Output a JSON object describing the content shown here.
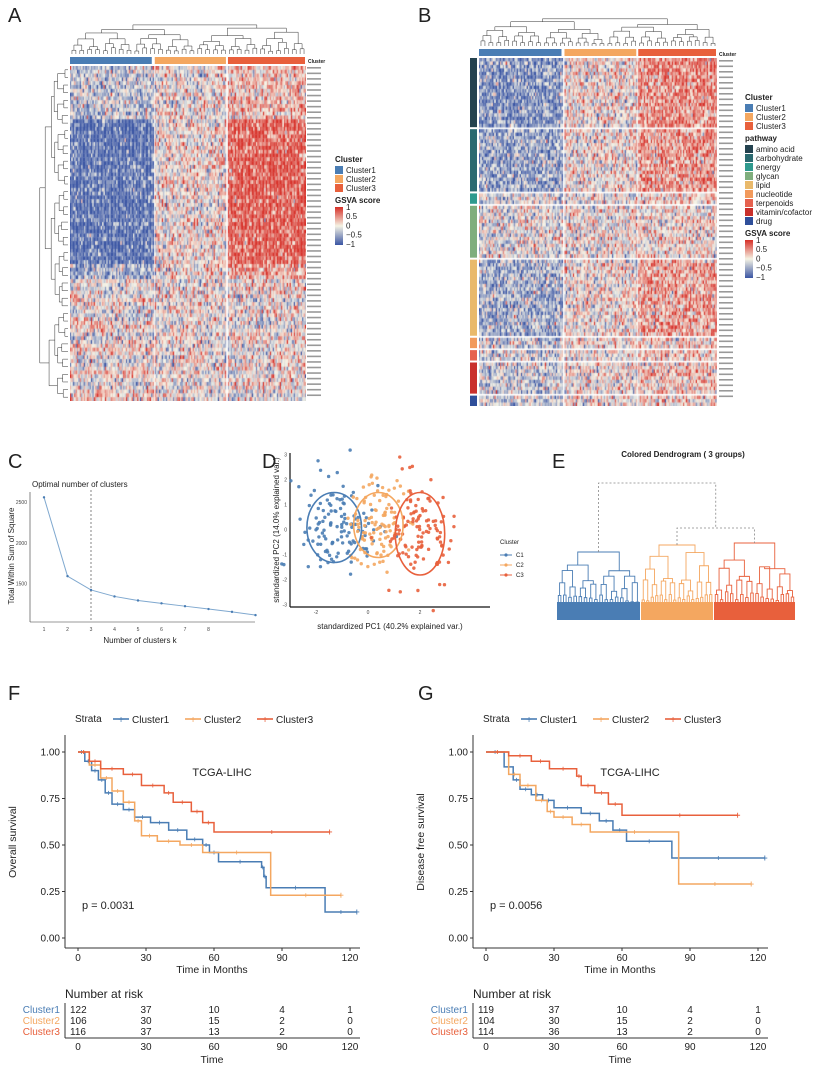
{
  "panels": {
    "A": "A",
    "B": "B",
    "C": "C",
    "D": "D",
    "E": "E",
    "F": "F",
    "G": "G"
  },
  "colors": {
    "cluster1": "#4a7db4",
    "cluster2": "#f4a760",
    "cluster3": "#e8603c",
    "heat_low": "#3a55a3",
    "heat_mid": "#f5f3e4",
    "heat_high": "#d62f27"
  },
  "chart_data": [
    {
      "panel": "A",
      "type": "heatmap",
      "column_annotation": {
        "title": "Cluster",
        "levels": [
          "Cluster1",
          "Cluster2",
          "Cluster3"
        ],
        "n": [
          122,
          106,
          116
        ]
      },
      "colorbar": {
        "title": "GSVA score",
        "ticks": [
          "1",
          "0.5",
          "0",
          "−0.5",
          "−1"
        ],
        "range": [
          -1,
          1
        ]
      },
      "annotation_label": "Cluster"
    },
    {
      "panel": "B",
      "type": "heatmap",
      "column_annotation": {
        "title": "Cluster",
        "levels": [
          "Cluster1",
          "Cluster2",
          "Cluster3"
        ]
      },
      "row_annotation": {
        "title": "pathway",
        "levels": [
          "amino acid",
          "carbohydrate",
          "energy",
          "glycan",
          "lipid",
          "nucleotide",
          "terpenoids",
          "vitamin/cofactor",
          "drug"
        ],
        "colors": [
          "#24424f",
          "#2b6a70",
          "#2f9a8e",
          "#7fae7d",
          "#e9b96b",
          "#f29a5c",
          "#e6624f",
          "#c9302c",
          "#2f4f9a"
        ]
      },
      "colorbar": {
        "title": "GSVA score",
        "ticks": [
          "1",
          "0.5",
          "0",
          "−0.5",
          "−1"
        ],
        "range": [
          -1,
          1
        ]
      },
      "annotation_label": "Cluster"
    },
    {
      "panel": "C",
      "type": "line",
      "title": "Optimal number of clusters",
      "xlabel": "Number of clusters k",
      "ylabel": "Total Within Sum of Square",
      "x": [
        1,
        2,
        3,
        4,
        5,
        6,
        7,
        8,
        9,
        10
      ],
      "values": [
        2560,
        1590,
        1420,
        1340,
        1290,
        1255,
        1220,
        1185,
        1150,
        1110
      ],
      "xticks": [
        "1",
        "2",
        "3",
        "4",
        "5",
        "6",
        "7",
        "8"
      ],
      "yticks": [
        1500,
        2000,
        2500
      ],
      "ylim": [
        1050,
        2650
      ],
      "vline": 3
    },
    {
      "panel": "D",
      "type": "scatter",
      "xlabel": "standardized PC1 (40.2% explained var.)",
      "ylabel": "standardized PC2 (14.0% explained var.)",
      "xlim": [
        -3,
        4.5
      ],
      "ylim": [
        -3,
        3
      ],
      "xticks": [
        "-2",
        "0",
        "2"
      ],
      "yticks": [
        "3",
        "2",
        "1",
        "0",
        "-1",
        "-2",
        "-3"
      ],
      "legend": {
        "title": "Cluster",
        "entries": [
          "C1",
          "C2",
          "C3"
        ],
        "placement": "right"
      },
      "groups": [
        {
          "name": "C1",
          "n": 122,
          "center": [
            -1.3,
            0.1
          ],
          "spread": [
            0.75,
            0.95
          ],
          "ellipse_radii": [
            1.05,
            1.4
          ]
        },
        {
          "name": "C2",
          "n": 106,
          "center": [
            0.4,
            0.2
          ],
          "spread": [
            0.6,
            0.95
          ],
          "ellipse_radii": [
            0.95,
            1.3
          ]
        },
        {
          "name": "C3",
          "n": 116,
          "center": [
            2.0,
            -0.15
          ],
          "spread": [
            0.65,
            1.0
          ],
          "ellipse_radii": [
            0.95,
            1.65
          ]
        }
      ]
    },
    {
      "panel": "E",
      "type": "dendrogram",
      "title": "Colored Dendrogram ( 3  groups)",
      "groups": [
        "Cluster1",
        "Cluster2",
        "Cluster3"
      ]
    },
    {
      "panel": "F",
      "type": "line",
      "subtype": "kaplan-meier",
      "legend_title": "Strata",
      "legend": [
        "Cluster1",
        "Cluster2",
        "Cluster3"
      ],
      "legend_placement": "top",
      "annotation": "TCGA-LIHC",
      "pvalue": "p = 0.0031",
      "xlabel": "Time in Months",
      "ylabel": "Overall survival",
      "xticks": [
        "0",
        "30",
        "60",
        "90",
        "120"
      ],
      "yticks": [
        "0.00",
        "0.25",
        "0.50",
        "0.75",
        "1.00"
      ],
      "xlim": [
        0,
        125
      ],
      "ylim": [
        0,
        1
      ],
      "series": [
        {
          "name": "Cluster1",
          "steps": [
            [
              0,
              1
            ],
            [
              3,
              0.95
            ],
            [
              6,
              0.9
            ],
            [
              9,
              0.85
            ],
            [
              12,
              0.78
            ],
            [
              15,
              0.72
            ],
            [
              20,
              0.69
            ],
            [
              25,
              0.65
            ],
            [
              32,
              0.62
            ],
            [
              40,
              0.58
            ],
            [
              48,
              0.53
            ],
            [
              55,
              0.5
            ],
            [
              58,
              0.46
            ],
            [
              62,
              0.41
            ],
            [
              81,
              0.38
            ],
            [
              82,
              0.33
            ],
            [
              83,
              0.27
            ],
            [
              109,
              0.14
            ],
            [
              123,
              0.14
            ]
          ]
        },
        {
          "name": "Cluster2",
          "steps": [
            [
              0,
              1
            ],
            [
              5,
              0.93
            ],
            [
              10,
              0.86
            ],
            [
              15,
              0.79
            ],
            [
              20,
              0.73
            ],
            [
              25,
              0.63
            ],
            [
              28,
              0.55
            ],
            [
              35,
              0.52
            ],
            [
              45,
              0.5
            ],
            [
              55,
              0.46
            ],
            [
              85,
              0.23
            ],
            [
              116,
              0.23
            ]
          ]
        },
        {
          "name": "Cluster3",
          "steps": [
            [
              0,
              1
            ],
            [
              5,
              0.95
            ],
            [
              10,
              0.91
            ],
            [
              20,
              0.88
            ],
            [
              28,
              0.82
            ],
            [
              38,
              0.78
            ],
            [
              42,
              0.73
            ],
            [
              50,
              0.68
            ],
            [
              55,
              0.62
            ],
            [
              60,
              0.57
            ],
            [
              111,
              0.57
            ]
          ]
        }
      ],
      "risk_table": {
        "title": "Number at risk",
        "xlabel": "Time",
        "times": [
          "0",
          "30",
          "60",
          "90",
          "120"
        ],
        "rows": [
          {
            "name": "Cluster1",
            "values": [
              "122",
              "37",
              "10",
              "4",
              "1"
            ]
          },
          {
            "name": "Cluster2",
            "values": [
              "106",
              "30",
              "15",
              "2",
              "0"
            ]
          },
          {
            "name": "Cluster3",
            "values": [
              "116",
              "37",
              "13",
              "2",
              "0"
            ]
          }
        ]
      }
    },
    {
      "panel": "G",
      "type": "line",
      "subtype": "kaplan-meier",
      "legend_title": "Strata",
      "legend": [
        "Cluster1",
        "Cluster2",
        "Cluster3"
      ],
      "legend_placement": "top",
      "annotation": "TCGA-LIHC",
      "pvalue": "p = 0.0056",
      "xlabel": "Time in Months",
      "ylabel": "Disease free survival",
      "xticks": [
        "0",
        "30",
        "60",
        "90",
        "120"
      ],
      "yticks": [
        "0.00",
        "0.25",
        "0.50",
        "0.75",
        "1.00"
      ],
      "xlim": [
        0,
        125
      ],
      "ylim": [
        0,
        1
      ],
      "series": [
        {
          "name": "Cluster1",
          "steps": [
            [
              0,
              1
            ],
            [
              8,
              0.92
            ],
            [
              12,
              0.85
            ],
            [
              15,
              0.8
            ],
            [
              20,
              0.77
            ],
            [
              25,
              0.74
            ],
            [
              30,
              0.7
            ],
            [
              42,
              0.67
            ],
            [
              50,
              0.63
            ],
            [
              56,
              0.58
            ],
            [
              62,
              0.52
            ],
            [
              82,
              0.43
            ],
            [
              123,
              0.43
            ]
          ]
        },
        {
          "name": "Cluster2",
          "steps": [
            [
              0,
              1
            ],
            [
              10,
              0.88
            ],
            [
              15,
              0.82
            ],
            [
              22,
              0.74
            ],
            [
              27,
              0.68
            ],
            [
              30,
              0.65
            ],
            [
              38,
              0.61
            ],
            [
              46,
              0.57
            ],
            [
              85,
              0.29
            ],
            [
              117,
              0.29
            ]
          ]
        },
        {
          "name": "Cluster3",
          "steps": [
            [
              0,
              1
            ],
            [
              10,
              0.98
            ],
            [
              20,
              0.95
            ],
            [
              28,
              0.91
            ],
            [
              40,
              0.87
            ],
            [
              42,
              0.82
            ],
            [
              48,
              0.78
            ],
            [
              54,
              0.72
            ],
            [
              60,
              0.66
            ],
            [
              111,
              0.66
            ]
          ]
        }
      ],
      "risk_table": {
        "title": "Number at risk",
        "xlabel": "Time",
        "times": [
          "0",
          "30",
          "60",
          "90",
          "120"
        ],
        "rows": [
          {
            "name": "Cluster1",
            "values": [
              "119",
              "37",
              "10",
              "4",
              "1"
            ]
          },
          {
            "name": "Cluster2",
            "values": [
              "104",
              "30",
              "15",
              "2",
              "0"
            ]
          },
          {
            "name": "Cluster3",
            "values": [
              "114",
              "36",
              "13",
              "2",
              "0"
            ]
          }
        ]
      }
    }
  ]
}
